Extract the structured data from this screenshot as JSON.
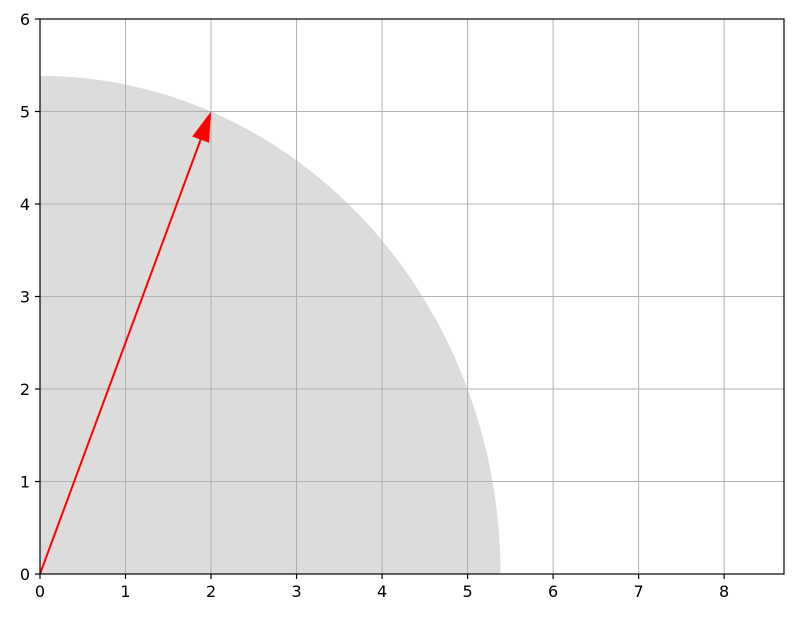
{
  "chart_data": {
    "type": "vector",
    "title": "",
    "xlabel": "",
    "ylabel": "",
    "xlim": [
      0,
      8.7
    ],
    "ylim": [
      0,
      6
    ],
    "x_ticks": [
      0,
      1,
      2,
      3,
      4,
      5,
      6,
      7,
      8
    ],
    "y_ticks": [
      0,
      1,
      2,
      3,
      4,
      5,
      6
    ],
    "grid": true,
    "vector": {
      "x0": 0,
      "y0": 0,
      "x1": 2,
      "y1": 5,
      "color": "#ff0000"
    },
    "quarter_disc": {
      "center": [
        0,
        0
      ],
      "radius": 5.385,
      "color": "#dcdcdc"
    }
  }
}
